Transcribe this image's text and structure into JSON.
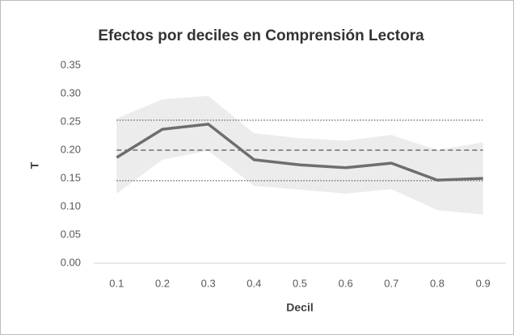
{
  "chart_data": {
    "type": "line",
    "title": "Efectos por deciles en Comprensión Lectora",
    "x_label": "Decil",
    "y_label": "T",
    "categories": [
      "0.1",
      "0.2",
      "0.3",
      "0.4",
      "0.5",
      "0.6",
      "0.7",
      "0.8",
      "0.9"
    ],
    "values": [
      0.187,
      0.237,
      0.246,
      0.183,
      0.174,
      0.169,
      0.177,
      0.147,
      0.15
    ],
    "color": "#6e6e6e",
    "band": {
      "upper": [
        0.256,
        0.29,
        0.296,
        0.23,
        0.221,
        0.217,
        0.227,
        0.2,
        0.214
      ],
      "lower": [
        0.123,
        0.183,
        0.199,
        0.137,
        0.13,
        0.123,
        0.131,
        0.094,
        0.086
      ],
      "color": "#ececec"
    },
    "reference_lines": [
      {
        "value": 0.253,
        "style": "dotted",
        "color": "#777777"
      },
      {
        "value": 0.2,
        "style": "dashed",
        "color": "#555555"
      },
      {
        "value": 0.146,
        "style": "dotted",
        "color": "#777777"
      }
    ],
    "ylim": [
      0,
      0.35
    ],
    "yticks": [
      {
        "value": 0,
        "label": "0.00"
      },
      0.05,
      {
        "value": 0.1,
        "label": "0.10"
      },
      0.15,
      {
        "value": 0.2,
        "label": "0.20"
      },
      0.25,
      {
        "value": 0.3,
        "label": "0.30"
      },
      0.35
    ],
    "grid": false
  }
}
